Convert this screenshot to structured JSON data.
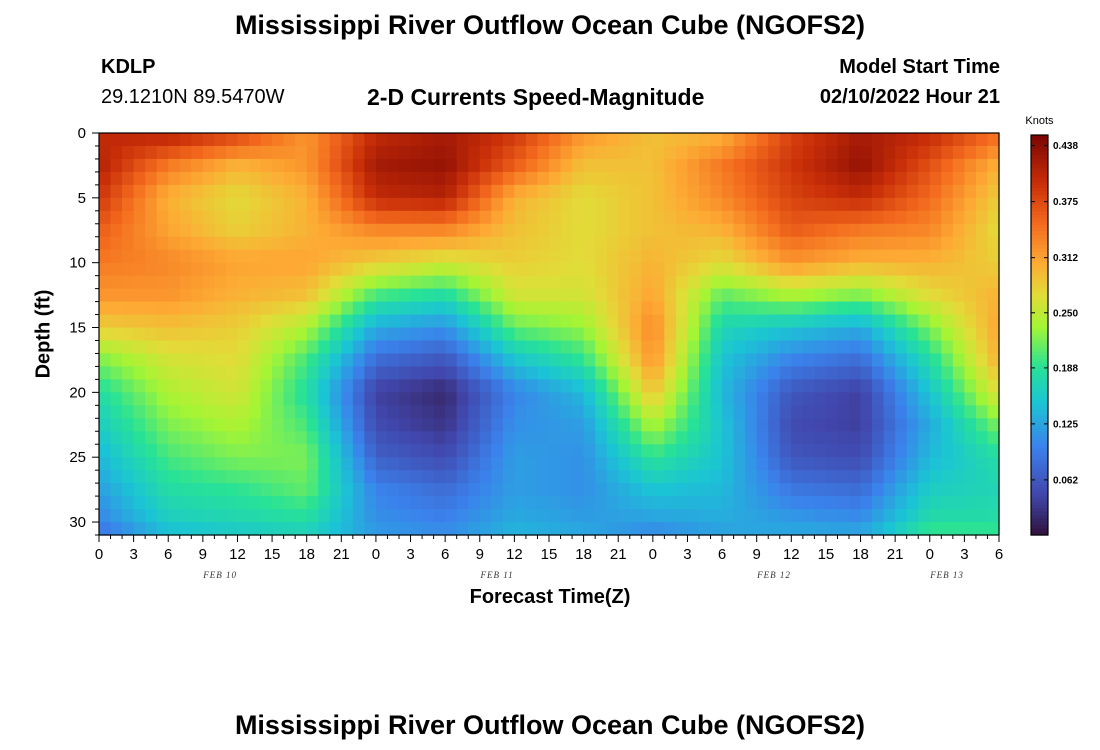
{
  "header": {
    "title": "Mississippi River Outflow Ocean Cube (NGOFS2)",
    "station": "KDLP",
    "coordinates": "29.1210N  89.5470W",
    "subtitle": "2-D Currents Speed-Magnitude",
    "model_start_label": "Model Start Time",
    "model_start_value": "02/10/2022 Hour 21"
  },
  "footer": {
    "title": "Mississippi River Outflow Ocean Cube (NGOFS2)"
  },
  "chart_data": {
    "type": "heatmap",
    "xlabel": "Forecast Time(Z)",
    "ylabel": "Depth (ft)",
    "x_tick_labels": [
      "0",
      "3",
      "6",
      "9",
      "12",
      "15",
      "18",
      "21",
      "0",
      "3",
      "6",
      "9",
      "12",
      "15",
      "18",
      "21",
      "0",
      "3",
      "6",
      "9",
      "12",
      "15",
      "18",
      "21",
      "0",
      "3",
      "6"
    ],
    "date_labels": [
      {
        "text": "FEB 10",
        "hour": 10.5
      },
      {
        "text": "FEB 11",
        "hour": 34.5
      },
      {
        "text": "FEB 12",
        "hour": 58.5
      },
      {
        "text": "FEB 13",
        "hour": 73.5
      }
    ],
    "x_range_hours": [
      0,
      78
    ],
    "y_ticks": [
      0,
      5,
      10,
      15,
      20,
      25,
      30
    ],
    "ylim": [
      0,
      31
    ],
    "colorbar": {
      "title": "Knots",
      "ticks": [
        "0.438",
        "0.375",
        "0.312",
        "0.250",
        "0.188",
        "0.125",
        "0.062"
      ],
      "vmin": 0.0,
      "vmax": 0.45
    },
    "depth_profiles_ft": [
      0,
      2.5,
      5,
      7.5,
      10,
      12.5,
      15,
      17.5,
      20,
      22.5,
      25,
      27.5,
      30,
      31
    ],
    "time_hours": [
      0,
      6,
      12,
      18,
      24,
      30,
      36,
      42,
      48,
      54,
      60,
      66,
      72,
      78
    ],
    "speed_knots": [
      [
        0.4,
        0.41,
        0.39,
        0.36,
        0.34,
        0.32,
        0.28,
        0.22,
        0.18,
        0.16,
        0.14,
        0.12,
        0.1,
        0.08
      ],
      [
        0.41,
        0.34,
        0.3,
        0.31,
        0.33,
        0.32,
        0.29,
        0.26,
        0.24,
        0.22,
        0.2,
        0.18,
        0.16,
        0.14
      ],
      [
        0.38,
        0.3,
        0.27,
        0.28,
        0.31,
        0.3,
        0.28,
        0.27,
        0.26,
        0.24,
        0.22,
        0.19,
        0.17,
        0.15
      ],
      [
        0.32,
        0.32,
        0.3,
        0.3,
        0.31,
        0.29,
        0.24,
        0.2,
        0.18,
        0.2,
        0.22,
        0.21,
        0.18,
        0.16
      ],
      [
        0.4,
        0.42,
        0.4,
        0.33,
        0.28,
        0.2,
        0.13,
        0.08,
        0.04,
        0.05,
        0.07,
        0.1,
        0.11,
        0.12
      ],
      [
        0.42,
        0.43,
        0.41,
        0.33,
        0.26,
        0.18,
        0.11,
        0.06,
        0.02,
        0.03,
        0.05,
        0.08,
        0.1,
        0.11
      ],
      [
        0.39,
        0.36,
        0.3,
        0.29,
        0.28,
        0.26,
        0.21,
        0.15,
        0.1,
        0.11,
        0.12,
        0.12,
        0.13,
        0.14
      ],
      [
        0.32,
        0.29,
        0.27,
        0.27,
        0.27,
        0.26,
        0.23,
        0.19,
        0.14,
        0.12,
        0.11,
        0.11,
        0.12,
        0.13
      ],
      [
        0.29,
        0.29,
        0.29,
        0.29,
        0.3,
        0.31,
        0.33,
        0.32,
        0.29,
        0.24,
        0.19,
        0.15,
        0.12,
        0.1
      ],
      [
        0.3,
        0.34,
        0.33,
        0.3,
        0.27,
        0.21,
        0.17,
        0.15,
        0.14,
        0.15,
        0.15,
        0.14,
        0.13,
        0.12
      ],
      [
        0.38,
        0.39,
        0.38,
        0.36,
        0.32,
        0.24,
        0.15,
        0.1,
        0.06,
        0.05,
        0.06,
        0.09,
        0.12,
        0.13
      ],
      [
        0.42,
        0.43,
        0.4,
        0.34,
        0.3,
        0.22,
        0.13,
        0.08,
        0.04,
        0.04,
        0.05,
        0.08,
        0.11,
        0.13
      ],
      [
        0.4,
        0.37,
        0.35,
        0.33,
        0.3,
        0.27,
        0.22,
        0.18,
        0.15,
        0.13,
        0.14,
        0.16,
        0.18,
        0.2
      ],
      [
        0.35,
        0.3,
        0.28,
        0.27,
        0.28,
        0.3,
        0.31,
        0.3,
        0.27,
        0.22,
        0.18,
        0.17,
        0.18,
        0.2
      ]
    ]
  }
}
